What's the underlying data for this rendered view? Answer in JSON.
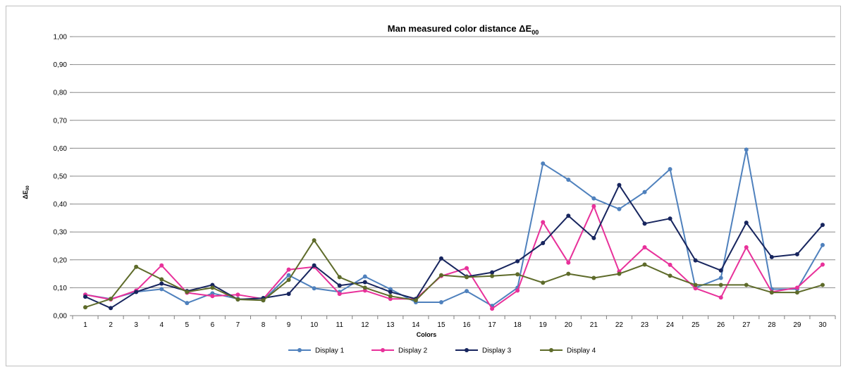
{
  "chart_data": {
    "type": "line",
    "title": "Man measured color distance ΔE",
    "title_subscript": "00",
    "xlabel": "Colors",
    "ylabel": "ΔE",
    "ylabel_subscript": "00",
    "ylim": [
      0,
      1
    ],
    "yticks": [
      "0,00",
      "0,10",
      "0,20",
      "0,30",
      "0,40",
      "0,50",
      "0,60",
      "0,70",
      "0,80",
      "0,90",
      "1,00"
    ],
    "grid": true,
    "legend_position": "bottom",
    "categories": [
      "1",
      "2",
      "3",
      "4",
      "5",
      "6",
      "7",
      "8",
      "9",
      "10",
      "11",
      "12",
      "13",
      "14",
      "15",
      "16",
      "17",
      "18",
      "19",
      "20",
      "21",
      "22",
      "23",
      "24",
      "25",
      "26",
      "27",
      "28",
      "29",
      "30"
    ],
    "series": [
      {
        "name": "Display 1",
        "color": "#4F81BD",
        "values": [
          0.075,
          0.06,
          0.085,
          0.095,
          0.045,
          0.08,
          0.06,
          0.055,
          0.145,
          0.098,
          0.085,
          0.14,
          0.095,
          0.048,
          0.048,
          0.088,
          0.035,
          0.1,
          0.545,
          0.487,
          0.42,
          0.382,
          0.443,
          0.525,
          0.1,
          0.135,
          0.595,
          0.095,
          0.095,
          0.253
        ]
      },
      {
        "name": "Display 2",
        "color": "#E8319A",
        "values": [
          0.075,
          0.058,
          0.09,
          0.18,
          0.082,
          0.07,
          0.075,
          0.06,
          0.165,
          0.175,
          0.078,
          0.09,
          0.06,
          0.06,
          0.142,
          0.17,
          0.025,
          0.09,
          0.335,
          0.19,
          0.392,
          0.158,
          0.245,
          0.182,
          0.098,
          0.065,
          0.245,
          0.085,
          0.1,
          0.183
        ]
      },
      {
        "name": "Display 3",
        "color": "#17255E",
        "values": [
          0.068,
          0.027,
          0.085,
          0.115,
          0.088,
          0.11,
          0.058,
          0.063,
          0.078,
          0.18,
          0.108,
          0.12,
          0.085,
          0.06,
          0.205,
          0.14,
          0.155,
          0.195,
          0.26,
          0.358,
          0.278,
          0.468,
          0.33,
          0.348,
          0.198,
          0.162,
          0.333,
          0.21,
          0.22,
          0.325
        ]
      },
      {
        "name": "Display 4",
        "color": "#5E6B2A",
        "values": [
          0.03,
          0.06,
          0.175,
          0.13,
          0.085,
          0.1,
          0.058,
          0.055,
          0.128,
          0.27,
          0.138,
          0.1,
          0.07,
          0.055,
          0.145,
          0.138,
          0.142,
          0.148,
          0.118,
          0.15,
          0.135,
          0.15,
          0.183,
          0.143,
          0.11,
          0.11,
          0.11,
          0.083,
          0.083,
          0.11
        ]
      }
    ]
  }
}
